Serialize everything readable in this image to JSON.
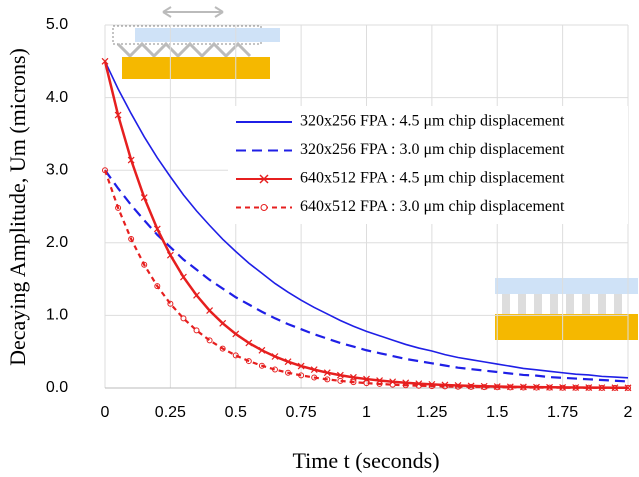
{
  "chart_data": {
    "type": "line",
    "xlabel": "Time t (seconds)",
    "ylabel": "Decaying Amplitude, Um (microns)",
    "x": [
      0,
      0.05,
      0.1,
      0.15,
      0.2,
      0.25,
      0.3,
      0.35,
      0.4,
      0.45,
      0.5,
      0.55,
      0.6,
      0.65,
      0.7,
      0.75,
      0.8,
      0.85,
      0.9,
      0.95,
      1,
      1.05,
      1.1,
      1.15,
      1.2,
      1.25,
      1.3,
      1.35,
      1.4,
      1.45,
      1.5,
      1.55,
      1.6,
      1.65,
      1.7,
      1.75,
      1.8,
      1.85,
      1.9,
      1.95,
      2
    ],
    "series": [
      {
        "name": "320x256 FPA : 4.5 μm chip displacement",
        "color": "#1f1fe6",
        "line_style": "solid",
        "marker": "none",
        "values": [
          4.5,
          4.12,
          3.78,
          3.46,
          3.17,
          2.91,
          2.66,
          2.44,
          2.24,
          2.05,
          1.88,
          1.72,
          1.58,
          1.44,
          1.32,
          1.21,
          1.11,
          1.02,
          0.93,
          0.85,
          0.78,
          0.72,
          0.66,
          0.6,
          0.55,
          0.51,
          0.46,
          0.42,
          0.39,
          0.36,
          0.33,
          0.3,
          0.27,
          0.25,
          0.23,
          0.21,
          0.19,
          0.18,
          0.16,
          0.15,
          0.14
        ]
      },
      {
        "name": "320x256 FPA : 3.0 μm chip displacement",
        "color": "#1f1fe6",
        "line_style": "dashed",
        "marker": "none",
        "values": [
          3.0,
          2.75,
          2.52,
          2.31,
          2.11,
          1.94,
          1.77,
          1.63,
          1.49,
          1.37,
          1.25,
          1.15,
          1.05,
          0.96,
          0.88,
          0.81,
          0.74,
          0.68,
          0.62,
          0.57,
          0.52,
          0.48,
          0.44,
          0.4,
          0.37,
          0.34,
          0.31,
          0.28,
          0.26,
          0.24,
          0.22,
          0.2,
          0.18,
          0.17,
          0.15,
          0.14,
          0.13,
          0.12,
          0.11,
          0.1,
          0.09
        ]
      },
      {
        "name": "640x512 FPA : 4.5 μm chip displacement",
        "color": "#e61f1f",
        "line_style": "solid",
        "marker": "x",
        "values": [
          4.5,
          3.759,
          3.14,
          2.623,
          2.191,
          1.83,
          1.528,
          1.277,
          1.066,
          0.891,
          0.744,
          0.621,
          0.519,
          0.434,
          0.362,
          0.302,
          0.253,
          0.211,
          0.176,
          0.147,
          0.123,
          0.103,
          0.086,
          0.072,
          0.06,
          0.05,
          0.042,
          0.035,
          0.029,
          0.024,
          0.02,
          0.017,
          0.014,
          0.012,
          0.01,
          0.008,
          0.007,
          0.006,
          0.005,
          0.004,
          0.003
        ]
      },
      {
        "name": "640x512 FPA : 3.0 μm chip displacement",
        "color": "#e61f1f",
        "line_style": "dashed",
        "marker": "circle",
        "values": [
          3.0,
          2.481,
          2.052,
          1.697,
          1.403,
          1.16,
          0.959,
          0.793,
          0.656,
          0.543,
          0.449,
          0.371,
          0.307,
          0.254,
          0.21,
          0.174,
          0.144,
          0.119,
          0.098,
          0.081,
          0.067,
          0.056,
          0.046,
          0.038,
          0.031,
          0.026,
          0.022,
          0.018,
          0.015,
          0.012,
          0.01,
          0.008,
          0.007,
          0.006,
          0.005,
          0.004,
          0.003,
          0.003,
          0.002,
          0.002,
          0.002
        ]
      }
    ],
    "xlim": [
      0,
      2
    ],
    "ylim": [
      0,
      5
    ],
    "xticks": [
      0,
      0.25,
      0.5,
      0.75,
      1,
      1.25,
      1.5,
      1.75,
      2
    ],
    "yticks": [
      {
        "value": 0,
        "label": "0.0"
      },
      {
        "value": 1,
        "label": "1.0"
      },
      {
        "value": 2,
        "label": "2.0"
      },
      {
        "value": 3,
        "label": "3.0"
      },
      {
        "value": 4,
        "label": "4.0"
      },
      {
        "value": 5,
        "label": "5.0"
      }
    ],
    "grid": true,
    "legend": "right"
  }
}
